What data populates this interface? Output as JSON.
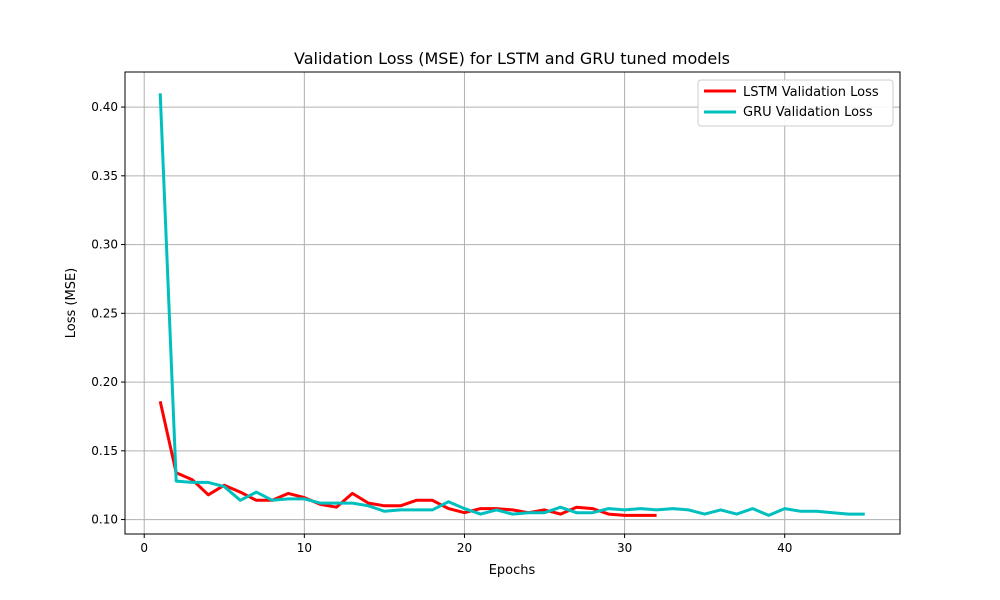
{
  "chart_data": {
    "type": "line",
    "title": "Validation Loss (MSE) for LSTM and GRU tuned models",
    "xlabel": "Epochs",
    "ylabel": "Loss (MSE)",
    "xlim": [
      -1.2,
      47.2
    ],
    "ylim": [
      0.0895,
      0.4255
    ],
    "xticks": [
      0,
      10,
      20,
      30,
      40
    ],
    "yticks": [
      0.1,
      0.15,
      0.2,
      0.25,
      0.3,
      0.35,
      0.4
    ],
    "ytick_labels": [
      "0.10",
      "0.15",
      "0.20",
      "0.25",
      "0.30",
      "0.35",
      "0.40"
    ],
    "grid": true,
    "legend_position": "top-right",
    "series": [
      {
        "name": "LSTM Validation Loss",
        "color": "#ff0000",
        "x": [
          1,
          2,
          3,
          4,
          5,
          6,
          7,
          8,
          9,
          10,
          11,
          12,
          13,
          14,
          15,
          16,
          17,
          18,
          19,
          20,
          21,
          22,
          23,
          24,
          25,
          26,
          27,
          28,
          29,
          30,
          31,
          32
        ],
        "y": [
          0.186,
          0.134,
          0.129,
          0.118,
          0.125,
          0.12,
          0.114,
          0.114,
          0.119,
          0.116,
          0.111,
          0.109,
          0.119,
          0.112,
          0.11,
          0.11,
          0.114,
          0.114,
          0.108,
          0.105,
          0.108,
          0.108,
          0.107,
          0.105,
          0.107,
          0.104,
          0.109,
          0.108,
          0.104,
          0.103,
          0.103,
          0.103
        ]
      },
      {
        "name": "GRU Validation Loss",
        "color": "#00bfbf",
        "x": [
          1,
          2,
          3,
          4,
          5,
          6,
          7,
          8,
          9,
          10,
          11,
          12,
          13,
          14,
          15,
          16,
          17,
          18,
          19,
          20,
          21,
          22,
          23,
          24,
          25,
          26,
          27,
          28,
          29,
          30,
          31,
          32,
          33,
          34,
          35,
          36,
          37,
          38,
          39,
          40,
          41,
          42,
          43,
          44,
          45
        ],
        "y": [
          0.41,
          0.128,
          0.127,
          0.127,
          0.124,
          0.114,
          0.12,
          0.114,
          0.115,
          0.115,
          0.112,
          0.112,
          0.112,
          0.11,
          0.106,
          0.107,
          0.107,
          0.107,
          0.113,
          0.108,
          0.104,
          0.107,
          0.104,
          0.105,
          0.105,
          0.109,
          0.105,
          0.105,
          0.108,
          0.107,
          0.108,
          0.107,
          0.108,
          0.107,
          0.104,
          0.107,
          0.104,
          0.108,
          0.103,
          0.108,
          0.106,
          0.106,
          0.105,
          0.104,
          0.104
        ]
      }
    ]
  }
}
